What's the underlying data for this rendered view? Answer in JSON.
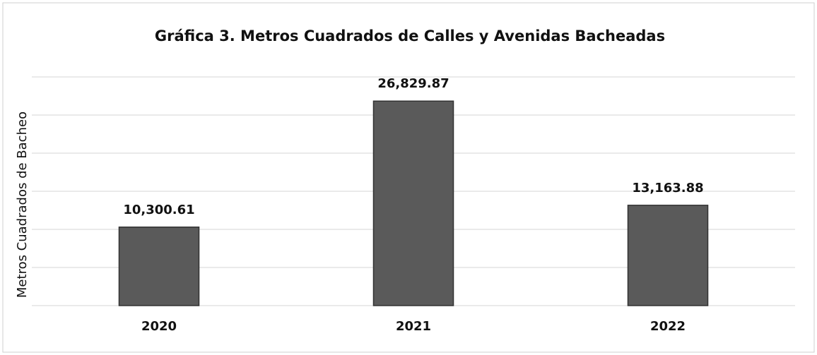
{
  "chart_data": {
    "type": "bar",
    "title": "Gráfica 3. Metros Cuadrados de Calles y Avenidas Bacheadas",
    "y_label": "Metros Cuadrados de Bacheo",
    "categories": [
      "2020",
      "2021",
      "2022"
    ],
    "values": [
      10300.61,
      26829.87,
      13163.88
    ],
    "value_labels": [
      "10,300.61",
      "26,829.87",
      "13,163.88"
    ],
    "color": "#5a5a5a",
    "ylim": [
      0,
      30000
    ],
    "yticks": [
      0,
      5000,
      10000,
      15000,
      20000,
      25000,
      30000
    ],
    "grid": true
  }
}
